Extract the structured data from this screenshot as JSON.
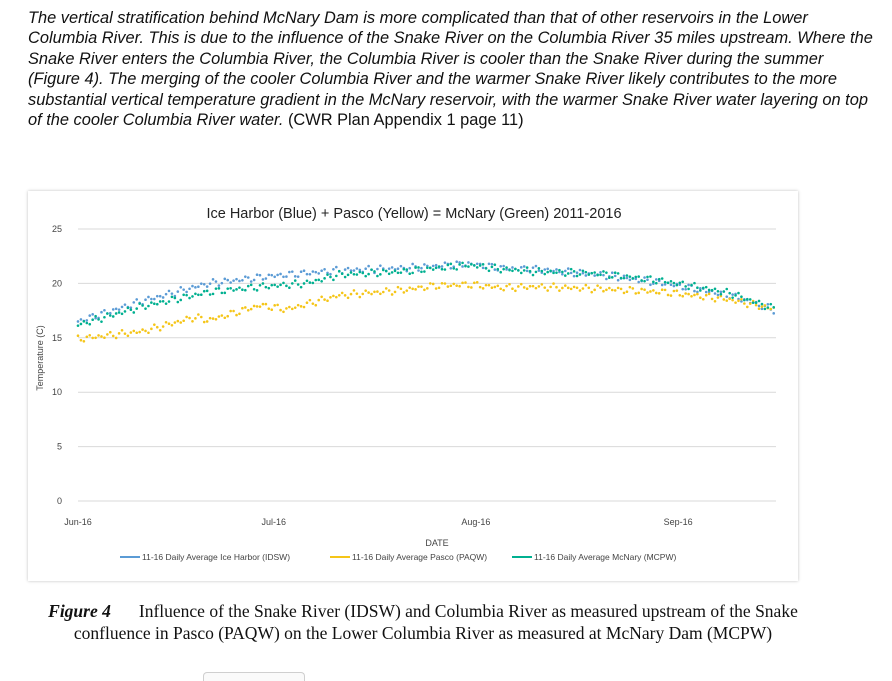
{
  "intro": {
    "quote": "The vertical stratification behind McNary Dam is more complicated than that of other reservoirs in the Lower Columbia River. This is due to the influence of the Snake River on the Columbia River 35 miles upstream. Where the Snake River enters the Columbia River, the Columbia River is cooler than the Snake River during the summer (Figure 4). The merging of the cooler Columbia River and the warmer Snake River likely contributes to the more substantial vertical temperature gradient in the McNary reservoir, with the warmer Snake River water layering on top of the cooler Columbia River water.",
    "citation": " (CWR Plan Appendix 1 page 11)"
  },
  "chart_data": {
    "type": "scatter",
    "title": "Ice Harbor (Blue) + Pasco (Yellow) = McNary (Green) 2011-2016",
    "xlabel": "DATE",
    "ylabel": "Temperature (C)",
    "ylim": [
      0,
      25
    ],
    "yticks": [
      "0",
      "5",
      "10",
      "15",
      "20",
      "25"
    ],
    "x_tick_labels": [
      "Jun-16",
      "Jul-16",
      "Aug-16",
      "Sep-16"
    ],
    "x_tick_days": [
      0,
      30,
      61,
      92
    ],
    "xlim": [
      0,
      107
    ],
    "grid": true,
    "legend_position": "bottom",
    "series": [
      {
        "name": "11-16 Daily Average Ice Harbor (IDSW)",
        "color": "#5b9bd5",
        "x": [
          0,
          10,
          20,
          30,
          40,
          50,
          55,
          60,
          65,
          70,
          80,
          90,
          100,
          107
        ],
        "y": [
          16.5,
          18.4,
          20.0,
          20.7,
          21.2,
          21.4,
          21.6,
          21.8,
          21.4,
          21.3,
          20.8,
          20.0,
          18.9,
          17.5
        ]
      },
      {
        "name": "11-16 Daily Average Pasco (PAQW)",
        "color": "#f5c518",
        "x": [
          0,
          10,
          18,
          20,
          28,
          32,
          40,
          50,
          55,
          60,
          65,
          70,
          80,
          90,
          100,
          107
        ],
        "y": [
          14.9,
          15.6,
          16.9,
          16.6,
          18.0,
          17.6,
          18.9,
          19.4,
          19.8,
          19.9,
          19.6,
          19.7,
          19.5,
          19.2,
          18.5,
          17.6
        ]
      },
      {
        "name": "11-16 Daily Average McNary (MCPW)",
        "color": "#00b090",
        "x": [
          0,
          10,
          20,
          28,
          35,
          40,
          50,
          55,
          60,
          65,
          70,
          80,
          90,
          100,
          107
        ],
        "y": [
          16.2,
          17.9,
          19.2,
          19.7,
          20.0,
          20.8,
          21.1,
          21.4,
          21.7,
          21.3,
          21.1,
          20.9,
          20.2,
          19.1,
          17.6
        ]
      }
    ]
  },
  "caption": {
    "label": "Figure 4",
    "text": "Influence of the Snake River (IDSW) and Columbia River as measured upstream of the Snake confluence in Pasco (PAQW) on the Lower Columbia River as measured at McNary Dam (MCPW)"
  }
}
